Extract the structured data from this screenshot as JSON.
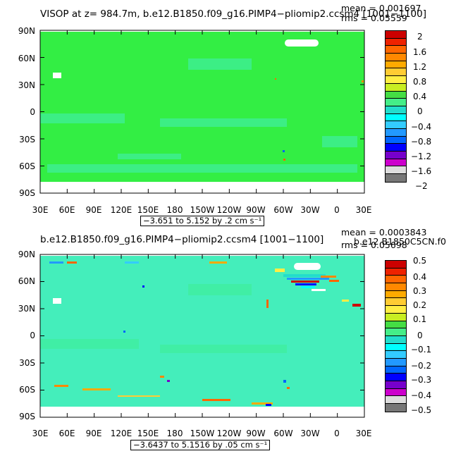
{
  "panels": [
    {
      "title": "VISOP at z= 984.7m, b.e12.B1850.f09_g16.PIMP4−pliomip2.ccsm4 [1001−1100]",
      "mean": "mean = 0.001697",
      "rms": "rms = 0.05559",
      "range_label": "−3.651 to 5.152 by .2 cm s⁻¹",
      "lat_labels": [
        "90N",
        "60N",
        "30N",
        "0",
        "30S",
        "60S",
        "90S"
      ],
      "lon_labels": [
        "30E",
        "60E",
        "90E",
        "120E",
        "150E",
        "180",
        "150W",
        "120W",
        "90W",
        "60W",
        "30W",
        "0",
        "30E"
      ],
      "colorbar_labels": [
        "2",
        "1.6",
        "1.2",
        "0.8",
        "0.4",
        "0",
        "−0.4",
        "−0.8",
        "−1.2",
        "−1.6",
        "−2"
      ]
    },
    {
      "title": "b.e12.B1850.f09_g16.PIMP4−pliomip2.ccsm4 [1001−1100]",
      "mean": "mean = 0.0003843",
      "rms": "rms = 0.05698",
      "overlay": "b.e12.B1850C5CN.f0",
      "range_label": "−3.6437 to 5.1516 by .05 cm s⁻¹",
      "lat_labels": [
        "90N",
        "60N",
        "30N",
        "0",
        "30S",
        "60S",
        "90S"
      ],
      "lon_labels": [
        "30E",
        "60E",
        "90E",
        "120E",
        "150E",
        "180",
        "150W",
        "120W",
        "90W",
        "60W",
        "30W",
        "0",
        "30E"
      ],
      "colorbar_labels": [
        "0.5",
        "0.4",
        "0.3",
        "0.2",
        "0.1",
        "0",
        "−0.1",
        "−0.2",
        "−0.3",
        "−0.4",
        "−0.5"
      ]
    }
  ],
  "colorbar_colors": [
    "#cc0000",
    "#ee2200",
    "#ff6600",
    "#ff8800",
    "#ffaa00",
    "#ffcc33",
    "#ffee44",
    "#c8ee22",
    "#44dd44",
    "#44ee88",
    "#22ddcc",
    "#00ffff",
    "#33ccff",
    "#2299ff",
    "#0066ff",
    "#0000ff",
    "#7700cc",
    "#cc00cc",
    "#dddddd",
    "#777777"
  ],
  "colors": {
    "land": "#33ee44",
    "ocean": "#44eebb",
    "white": "#ffffff"
  }
}
